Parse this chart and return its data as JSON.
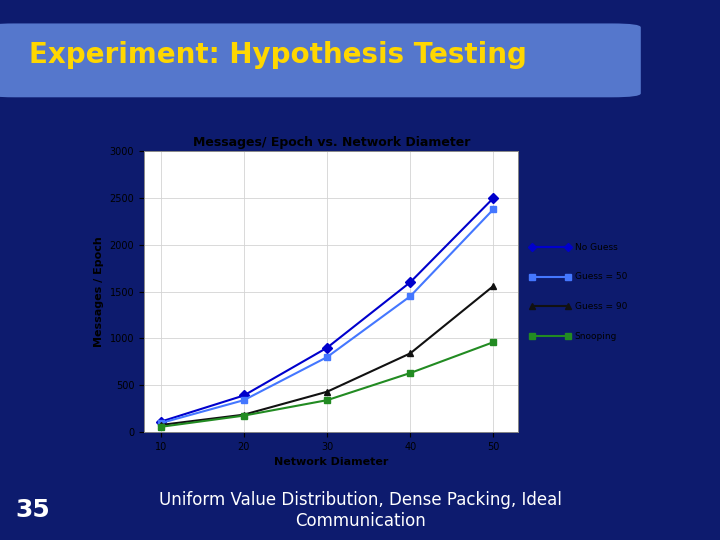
{
  "title": "Experiment: Hypothesis Testing",
  "slide_number": "35",
  "subtitle": "Uniform Value Distribution, Dense Packing, Ideal\nCommunication",
  "chart_title": "Messages/ Epoch vs. Network Diameter",
  "xlabel": "Network Diameter",
  "ylabel": "Messages / Epoch",
  "x_values": [
    10,
    20,
    30,
    40,
    50
  ],
  "series": {
    "No Guess": {
      "y": [
        110,
        390,
        900,
        1600,
        2500
      ],
      "color": "#0000CC",
      "marker": "D",
      "linestyle": "-"
    },
    "Guess = 50": {
      "y": [
        95,
        340,
        800,
        1450,
        2380
      ],
      "color": "#4477FF",
      "marker": "s",
      "linestyle": "-"
    },
    "Guess = 90": {
      "y": [
        75,
        185,
        430,
        840,
        1560
      ],
      "color": "#111111",
      "marker": "^",
      "linestyle": "-"
    },
    "Snooping": {
      "y": [
        55,
        175,
        340,
        630,
        960
      ],
      "color": "#228B22",
      "marker": "s",
      "linestyle": "-"
    }
  },
  "ylim": [
    0,
    3000
  ],
  "yticks": [
    0,
    500,
    1000,
    1500,
    2000,
    2500,
    3000
  ],
  "xticks": [
    10,
    20,
    30,
    40,
    50
  ],
  "bg_slide": "#0D1B6E",
  "bg_chart_panel": "#ADD8E6",
  "title_color": "#FFD700",
  "title_bar_color": "#5577CC",
  "slide_num_color": "#FFFFFF",
  "subtitle_color": "#FFFFFF",
  "chart_bg": "#FFFFFF",
  "legend_bg": "#ADD8E6"
}
